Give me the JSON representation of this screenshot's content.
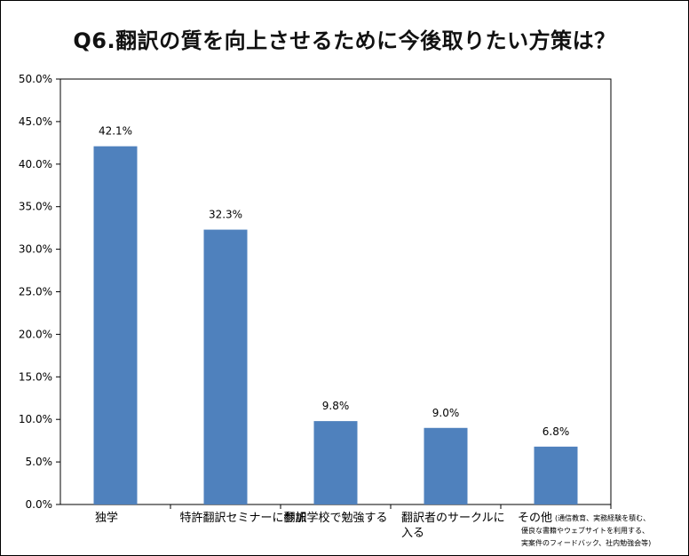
{
  "chart_data": {
    "type": "bar",
    "title": "Q6.翻訳の質を向上させるために今後取りたい方策は？",
    "ylim": [
      0,
      50
    ],
    "ytick_labels": [
      "0.0%",
      "5.0%",
      "10.0%",
      "15.0%",
      "20.0%",
      "25.0%",
      "30.0%",
      "35.0%",
      "40.0%",
      "45.0%",
      "50.0%"
    ],
    "categories": [
      {
        "lines": [
          "独学"
        ]
      },
      {
        "lines": [
          "特許翻訳セミナーに参加"
        ]
      },
      {
        "lines": [
          "翻訳学校で勉強する"
        ]
      },
      {
        "lines": [
          "翻訳者のサークルに",
          "入る"
        ]
      },
      {
        "lines": [
          "その他"
        ],
        "note": [
          "(通信教育、実務経験を積む、",
          "優良な書籍やウェブサイトを利用する、",
          "実案件のフィードバック、社内勉強会等)"
        ]
      }
    ],
    "values": [
      42.1,
      32.3,
      9.8,
      9.0,
      6.8
    ],
    "data_labels": [
      "42.1%",
      "32.3%",
      "9.8%",
      "9.0%",
      "6.8%"
    ],
    "bar_color": "#4f81bd",
    "grid": false
  }
}
